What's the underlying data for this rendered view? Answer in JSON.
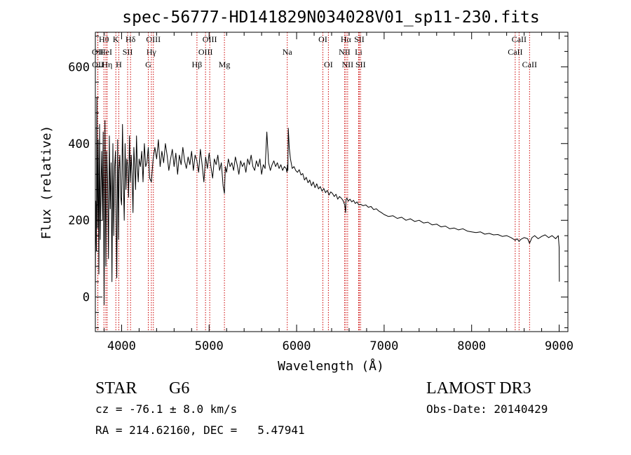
{
  "chart_data": {
    "type": "line",
    "title": "spec-56777-HD141829N034028V01_sp11-230.fits",
    "xlabel": "Wavelength (Å)",
    "ylabel": "Flux (relative)",
    "xlim": [
      3700,
      9100
    ],
    "ylim": [
      -90,
      690
    ],
    "xticks": [
      4000,
      5000,
      6000,
      7000,
      8000,
      9000
    ],
    "yticks": [
      0,
      200,
      400,
      600
    ],
    "xtick_labels": [
      "4000",
      "5000",
      "6000",
      "7000",
      "8000",
      "9000"
    ],
    "ytick_labels": [
      "0",
      "200",
      "400",
      "600"
    ],
    "series": [
      {
        "name": "spectrum",
        "color": "#000000",
        "x": [
          3700,
          3705,
          3712,
          3718,
          3725,
          3732,
          3740,
          3748,
          3756,
          3765,
          3773,
          3782,
          3790,
          3800,
          3810,
          3820,
          3830,
          3840,
          3850,
          3860,
          3870,
          3880,
          3890,
          3900,
          3910,
          3920,
          3930,
          3935,
          3945,
          3955,
          3965,
          3970,
          3980,
          3990,
          4000,
          4010,
          4020,
          4030,
          4040,
          4050,
          4060,
          4070,
          4080,
          4090,
          4100,
          4110,
          4120,
          4130,
          4140,
          4150,
          4160,
          4170,
          4180,
          4190,
          4200,
          4215,
          4230,
          4245,
          4260,
          4275,
          4290,
          4305,
          4320,
          4340,
          4360,
          4380,
          4400,
          4420,
          4440,
          4460,
          4480,
          4500,
          4520,
          4540,
          4560,
          4580,
          4600,
          4620,
          4640,
          4660,
          4680,
          4700,
          4720,
          4740,
          4760,
          4780,
          4800,
          4820,
          4840,
          4860,
          4880,
          4900,
          4920,
          4940,
          4960,
          4980,
          5000,
          5020,
          5040,
          5060,
          5080,
          5100,
          5120,
          5140,
          5160,
          5175,
          5185,
          5200,
          5220,
          5240,
          5260,
          5280,
          5300,
          5320,
          5340,
          5360,
          5380,
          5400,
          5420,
          5440,
          5460,
          5480,
          5500,
          5520,
          5540,
          5560,
          5580,
          5600,
          5620,
          5640,
          5660,
          5680,
          5700,
          5720,
          5740,
          5760,
          5780,
          5800,
          5820,
          5840,
          5860,
          5880,
          5890,
          5895,
          5900,
          5905,
          5915,
          5930,
          5950,
          5970,
          5990,
          6010,
          6030,
          6050,
          6070,
          6090,
          6110,
          6130,
          6150,
          6170,
          6190,
          6210,
          6230,
          6250,
          6270,
          6290,
          6310,
          6330,
          6350,
          6370,
          6390,
          6410,
          6430,
          6450,
          6470,
          6490,
          6510,
          6530,
          6550,
          6560,
          6563,
          6566,
          6575,
          6590,
          6610,
          6630,
          6650,
          6670,
          6690,
          6710,
          6730,
          6760,
          6790,
          6820,
          6850,
          6880,
          6910,
          6940,
          6970,
          7000,
          7050,
          7100,
          7150,
          7200,
          7250,
          7300,
          7350,
          7400,
          7450,
          7500,
          7550,
          7600,
          7650,
          7700,
          7750,
          7800,
          7850,
          7900,
          7950,
          8000,
          8050,
          8100,
          8150,
          8200,
          8250,
          8300,
          8350,
          8400,
          8450,
          8498,
          8520,
          8542,
          8560,
          8600,
          8640,
          8662,
          8690,
          8720,
          8760,
          8800,
          8840,
          8880,
          8920,
          8960,
          8990,
          9000,
          9002
        ],
        "y": [
          30,
          250,
          120,
          520,
          180,
          410,
          60,
          450,
          150,
          300,
          380,
          200,
          430,
          -20,
          460,
          80,
          380,
          300,
          100,
          420,
          230,
          350,
          40,
          400,
          160,
          340,
          380,
          250,
          50,
          410,
          150,
          330,
          370,
          260,
          240,
          450,
          310,
          200,
          400,
          280,
          360,
          340,
          260,
          420,
          300,
          370,
          320,
          220,
          390,
          340,
          280,
          420,
          340,
          300,
          360,
          340,
          380,
          300,
          400,
          340,
          350,
          390,
          310,
          300,
          360,
          390,
          360,
          410,
          340,
          380,
          350,
          400,
          370,
          330,
          360,
          385,
          340,
          375,
          320,
          370,
          345,
          390,
          355,
          335,
          365,
          345,
          380,
          330,
          370,
          355,
          325,
          385,
          345,
          300,
          365,
          335,
          375,
          340,
          310,
          360,
          345,
          370,
          330,
          350,
          290,
          270,
          340,
          325,
          360,
          340,
          350,
          330,
          365,
          345,
          320,
          355,
          340,
          350,
          325,
          360,
          345,
          370,
          340,
          330,
          355,
          340,
          360,
          320,
          345,
          335,
          430,
          350,
          330,
          345,
          355,
          340,
          350,
          335,
          345,
          330,
          340,
          335,
          325,
          345,
          330,
          440,
          390,
          360,
          335,
          340,
          330,
          325,
          332,
          318,
          322,
          305,
          312,
          298,
          305,
          290,
          300,
          285,
          295,
          282,
          288,
          276,
          283,
          272,
          278,
          266,
          274,
          270,
          262,
          268,
          255,
          262,
          258,
          252,
          240,
          220,
          248,
          255,
          258,
          250,
          255,
          248,
          252,
          244,
          248,
          240,
          242,
          238,
          240,
          234,
          236,
          228,
          230,
          224,
          220,
          215,
          210,
          212,
          205,
          208,
          200,
          204,
          197,
          200,
          193,
          195,
          188,
          190,
          183,
          185,
          178,
          180,
          175,
          178,
          172,
          170,
          168,
          170,
          164,
          166,
          162,
          163,
          158,
          160,
          155,
          148,
          152,
          145,
          150,
          155,
          152,
          140,
          155,
          160,
          152,
          158,
          162,
          155,
          160,
          152,
          160,
          130,
          40
        ]
      }
    ],
    "line_markers": [
      {
        "name": "OII",
        "wavelength": 3727,
        "row": 2
      },
      {
        "name": "OII",
        "wavelength": 3729,
        "row": 3
      },
      {
        "name": "Hθ",
        "wavelength": 3798,
        "row": 1
      },
      {
        "name": "HeI",
        "wavelength": 3820,
        "row": 2
      },
      {
        "name": "Hη",
        "wavelength": 3835,
        "row": 3
      },
      {
        "name": "K",
        "wavelength": 3934,
        "row": 1
      },
      {
        "name": "SII",
        "wavelength": 4069,
        "row": 2
      },
      {
        "name": "H",
        "wavelength": 3968,
        "row": 3
      },
      {
        "name": "Hδ",
        "wavelength": 4102,
        "row": 1
      },
      {
        "name": "OIII",
        "wavelength": 4363,
        "row": 1
      },
      {
        "name": "Hγ",
        "wavelength": 4340,
        "row": 2
      },
      {
        "name": "G",
        "wavelength": 4305,
        "row": 3
      },
      {
        "name": "Hβ",
        "wavelength": 4861,
        "row": 3
      },
      {
        "name": "OIII",
        "wavelength": 5007,
        "row": 1
      },
      {
        "name": "OIII",
        "wavelength": 4959,
        "row": 2
      },
      {
        "name": "Mg",
        "wavelength": 5175,
        "row": 3
      },
      {
        "name": "Na",
        "wavelength": 5893,
        "row": 2
      },
      {
        "name": "OI",
        "wavelength": 6300,
        "row": 1
      },
      {
        "name": "OI",
        "wavelength": 6363,
        "row": 3
      },
      {
        "name": "Hα",
        "wavelength": 6563,
        "row": 1
      },
      {
        "name": "NII",
        "wavelength": 6548,
        "row": 2
      },
      {
        "name": "NII",
        "wavelength": 6583,
        "row": 3
      },
      {
        "name": "SII",
        "wavelength": 6716,
        "row": 1
      },
      {
        "name": "Li",
        "wavelength": 6708,
        "row": 2
      },
      {
        "name": "SII",
        "wavelength": 6731,
        "row": 3
      },
      {
        "name": "CaII",
        "wavelength": 8542,
        "row": 1
      },
      {
        "name": "CaII",
        "wavelength": 8498,
        "row": 2
      },
      {
        "name": "CaII",
        "wavelength": 8662,
        "row": 3
      }
    ]
  },
  "info": {
    "object_class": "STAR",
    "subclass": "G6",
    "survey": "LAMOST DR3",
    "redshift_line": "cz = -76.1 ± 8.0 km/s",
    "obs_date_line": "Obs-Date: 20140429",
    "coords_line": "RA = 214.62160, DEC =   5.47941"
  },
  "colors": {
    "spectrum": "#000000",
    "marker_line": "#cc0000",
    "axis": "#000000",
    "background": "#ffffff"
  }
}
